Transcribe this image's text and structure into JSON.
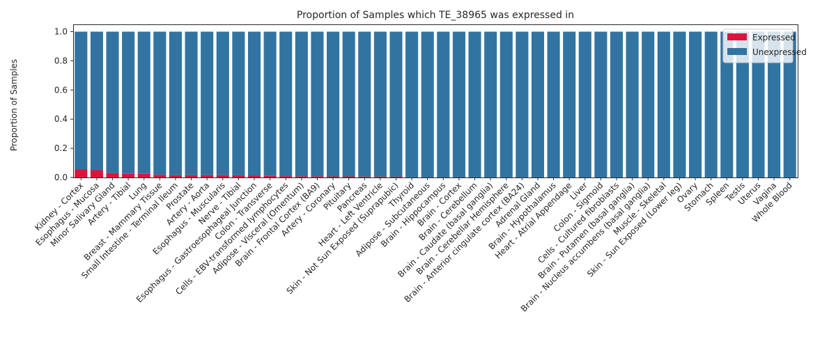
{
  "chart_data": {
    "type": "bar",
    "stacked": true,
    "title": "Proportion of Samples which TE_38965 was expressed in",
    "xlabel": "",
    "ylabel": "Proportion of Samples",
    "ylim": [
      0,
      1.05
    ],
    "yticks": [
      "0.0",
      "0.2",
      "0.4",
      "0.6",
      "0.8",
      "1.0"
    ],
    "grid": false,
    "legend_position": "top-right",
    "categories": [
      "Kidney - Cortex",
      "Esophagus - Mucosa",
      "Minor Salivary Gland",
      "Artery - Tibial",
      "Lung",
      "Breast - Mammary Tissue",
      "Small Intestine - Terminal Ileum",
      "Prostate",
      "Artery - Aorta",
      "Esophagus - Muscularis",
      "Nerve - Tibial",
      "Esophagus - Gastroesophageal Junction",
      "Colon - Transverse",
      "Cells - EBV-transformed lymphocytes",
      "Adipose - Visceral (Omentum)",
      "Brain - Frontal Cortex (BA9)",
      "Artery - Coronary",
      "Pituitary",
      "Pancreas",
      "Heart - Left Ventricle",
      "Skin - Not Sun Exposed (Suprapubic)",
      "Thyroid",
      "Adipose - Subcutaneous",
      "Brain - Hippocampus",
      "Brain - Cortex",
      "Brain - Cerebellum",
      "Brain - Caudate (basal ganglia)",
      "Brain - Cerebellar Hemisphere",
      "Brain - Anterior cingulate cortex (BA24)",
      "Adrenal Gland",
      "Brain - Hypothalamus",
      "Heart - Atrial Appendage",
      "Liver",
      "Colon - Sigmoid",
      "Cells - Cultured fibroblasts",
      "Brain - Putamen (basal ganglia)",
      "Brain - Nucleus accumbens (basal ganglia)",
      "Muscle - Skeletal",
      "Skin - Sun Exposed (Lower leg)",
      "Ovary",
      "Stomach",
      "Spleen",
      "Testis",
      "Uterus",
      "Vagina",
      "Whole Blood"
    ],
    "series": [
      {
        "name": "Expressed",
        "color": "#dc143c",
        "values": [
          0.055,
          0.05,
          0.03,
          0.025,
          0.025,
          0.018,
          0.016,
          0.016,
          0.016,
          0.016,
          0.015,
          0.012,
          0.011,
          0.009,
          0.008,
          0.008,
          0.007,
          0.007,
          0.006,
          0.006,
          0.005,
          0,
          0,
          0,
          0,
          0,
          0,
          0,
          0,
          0,
          0,
          0,
          0,
          0,
          0,
          0,
          0,
          0,
          0,
          0,
          0,
          0,
          0,
          0,
          0,
          0
        ]
      },
      {
        "name": "Unexpressed",
        "color": "#3274a1",
        "values": [
          0.945,
          0.95,
          0.97,
          0.975,
          0.975,
          0.982,
          0.984,
          0.984,
          0.984,
          0.984,
          0.985,
          0.988,
          0.989,
          0.991,
          0.992,
          0.992,
          0.993,
          0.993,
          0.994,
          0.994,
          0.995,
          1,
          1,
          1,
          1,
          1,
          1,
          1,
          1,
          1,
          1,
          1,
          1,
          1,
          1,
          1,
          1,
          1,
          1,
          1,
          1,
          1,
          1,
          1,
          1,
          1
        ]
      }
    ]
  }
}
